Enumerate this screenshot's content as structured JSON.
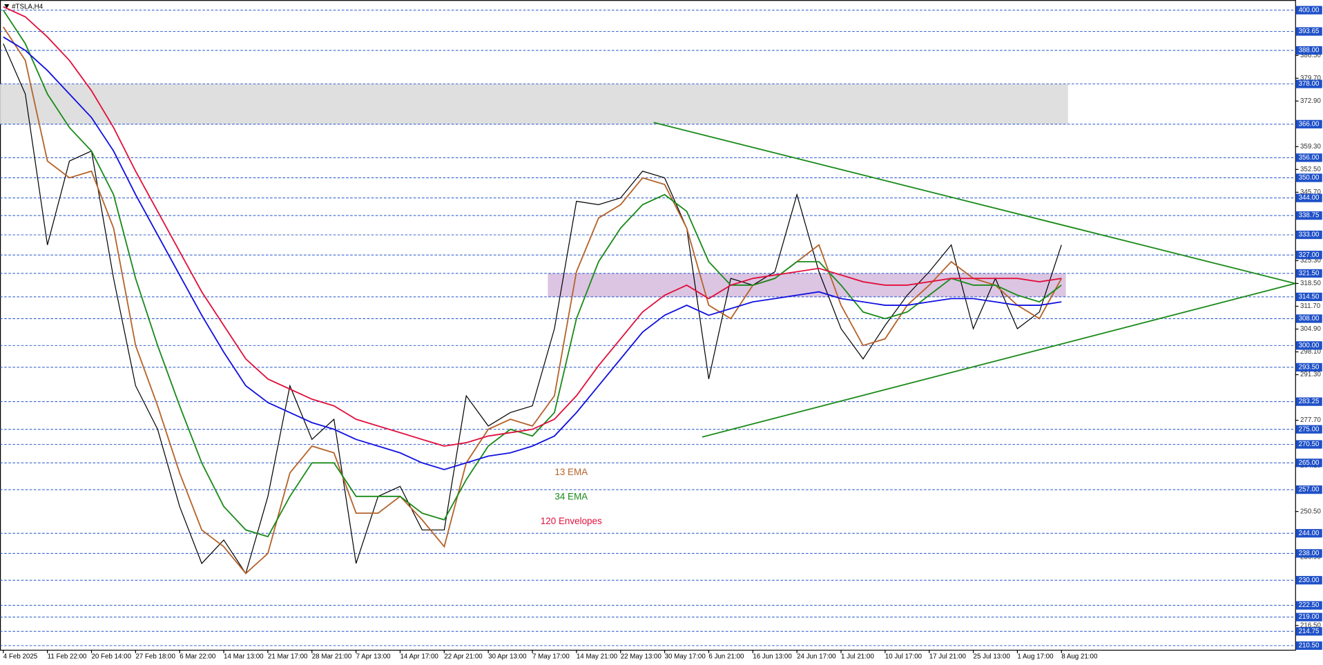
{
  "chart_data": {
    "type": "line",
    "title": "#TSLA,H4",
    "categories": [
      "4 Feb 2025",
      null,
      "11 Feb 22:00",
      null,
      "20 Feb 14:00",
      null,
      "27 Feb 18:00",
      null,
      "6 Mar 22:00",
      null,
      "14 Mar 13:00",
      null,
      "21 Mar 17:00",
      null,
      "28 Mar 21:00",
      null,
      "7 Apr 13:00",
      null,
      "14 Apr 17:00",
      null,
      "22 Apr 21:00",
      null,
      "30 Apr 13:00",
      null,
      "7 May 17:00",
      null,
      "14 May 21:00",
      null,
      "22 May 13:00",
      null,
      "30 May 17:00",
      null,
      "6 Jun 21:00",
      null,
      "16 Jun 13:00",
      null,
      "24 Jun 17:00",
      null,
      "1 Jul 21:00",
      null,
      "10 Jul 17:00",
      null,
      "17 Jul 21:00",
      null,
      "25 Jul 13:00",
      null,
      "1 Aug 17:00",
      null,
      "8 Aug 21:00"
    ],
    "series": [
      {
        "color": "#000000",
        "values": [
          390,
          375,
          330,
          355,
          358,
          320,
          288,
          275,
          252,
          235,
          242,
          232,
          255,
          288,
          272,
          278,
          235,
          255,
          258,
          245,
          245,
          285,
          276,
          280,
          282,
          305,
          343,
          342,
          344,
          352,
          350,
          335,
          290,
          320,
          318,
          322,
          345,
          322,
          305,
          296,
          306,
          315,
          322,
          330,
          305,
          320,
          305,
          310,
          330
        ]
      },
      {
        "name": "13 EMA",
        "color": "#b5632a",
        "values": [
          395,
          385,
          355,
          350,
          352,
          335,
          300,
          282,
          262,
          245,
          240,
          232,
          238,
          262,
          270,
          268,
          250,
          250,
          255,
          248,
          240,
          265,
          275,
          278,
          276,
          285,
          322,
          338,
          342,
          350,
          348,
          335,
          312,
          308,
          318,
          320,
          325,
          330,
          312,
          300,
          302,
          312,
          318,
          325,
          320,
          318,
          312,
          308,
          320
        ]
      },
      {
        "name": "34 EMA",
        "color": "#1a8a1a",
        "values": [
          400,
          390,
          375,
          365,
          358,
          345,
          320,
          300,
          282,
          265,
          252,
          245,
          243,
          255,
          265,
          265,
          255,
          255,
          255,
          250,
          248,
          260,
          270,
          275,
          273,
          280,
          308,
          325,
          335,
          342,
          345,
          340,
          325,
          318,
          318,
          320,
          325,
          325,
          318,
          310,
          308,
          310,
          315,
          320,
          318,
          318,
          315,
          313,
          318
        ]
      },
      {
        "name": "120 Envelopes",
        "color": "#e0103c",
        "values": [
          401,
          398,
          392,
          385,
          376,
          365,
          352,
          340,
          328,
          316,
          306,
          296,
          290,
          287,
          284,
          282,
          278,
          276,
          274,
          272,
          270,
          271,
          273,
          274,
          275,
          278,
          285,
          294,
          302,
          310,
          315,
          318,
          314,
          318,
          320,
          321,
          322,
          323,
          321,
          319,
          318,
          318,
          319,
          320,
          320,
          320,
          320,
          319,
          320
        ]
      },
      {
        "color": "#1010e0",
        "values": [
          392,
          388,
          382,
          375,
          368,
          358,
          345,
          333,
          321,
          309,
          298,
          288,
          283,
          280,
          277,
          275,
          272,
          270,
          268,
          265,
          263,
          265,
          267,
          268,
          270,
          273,
          280,
          288,
          296,
          304,
          309,
          312,
          309,
          311,
          313,
          314,
          315,
          316,
          314,
          313,
          312,
          312,
          313,
          314,
          314,
          313,
          312,
          312,
          313
        ]
      }
    ],
    "xlim": [
      -0.15,
      58.6
    ],
    "ylim": [
      209.26,
      403.02
    ],
    "yticks": [
      {
        "value": 386.5,
        "label": "386.50"
      },
      {
        "value": 379.7,
        "label": "379.70"
      },
      {
        "value": 372.9,
        "label": "372.90"
      },
      {
        "value": 359.3,
        "label": "359.30"
      },
      {
        "value": 352.5,
        "label": "352.50"
      },
      {
        "value": 345.7,
        "label": "345.70"
      },
      {
        "value": 325.3,
        "label": "325.30"
      },
      {
        "value": 318.5,
        "label": "318.50"
      },
      {
        "value": 311.7,
        "label": "311.70"
      },
      {
        "value": 304.9,
        "label": "304.90"
      },
      {
        "value": 298.1,
        "label": "298.10"
      },
      {
        "value": 291.3,
        "label": "291.30"
      },
      {
        "value": 277.7,
        "label": "277.70"
      },
      {
        "value": 264.1,
        "label": "264.10"
      },
      {
        "value": 250.5,
        "label": "250.50"
      },
      {
        "value": 236.9,
        "label": "236.90"
      },
      {
        "value": 216.5,
        "label": "216.50"
      }
    ],
    "levels": [
      {
        "value": 400,
        "label": "400.00"
      },
      {
        "value": 393.65,
        "label": "393.65"
      },
      {
        "value": 388,
        "label": "388.00"
      },
      {
        "value": 378,
        "label": "378.00"
      },
      {
        "value": 366,
        "label": "366.00"
      },
      {
        "value": 356,
        "label": "356.00"
      },
      {
        "value": 350,
        "label": "350.00"
      },
      {
        "value": 344,
        "label": "344.00"
      },
      {
        "value": 338.75,
        "label": "338.75"
      },
      {
        "value": 333,
        "label": "333.00"
      },
      {
        "value": 327,
        "label": "327.00"
      },
      {
        "value": 321.5,
        "label": "321.50"
      },
      {
        "value": 314.5,
        "label": "314.50"
      },
      {
        "value": 308,
        "label": "308.00"
      },
      {
        "value": 300,
        "label": "300.00"
      },
      {
        "value": 293.5,
        "label": "293.50"
      },
      {
        "value": 283.25,
        "label": "283.25"
      },
      {
        "value": 275,
        "label": "275.00"
      },
      {
        "value": 270.5,
        "label": "270.50"
      },
      {
        "value": 265,
        "label": "265.00"
      },
      {
        "value": 257,
        "label": "257.00"
      },
      {
        "value": 244,
        "label": "244.00"
      },
      {
        "value": 238,
        "label": "238.00"
      },
      {
        "value": 230,
        "label": "230.00"
      },
      {
        "value": 222.5,
        "label": "222.50"
      },
      {
        "value": 219,
        "label": "219.00"
      },
      {
        "value": 214.75,
        "label": "214.75"
      },
      {
        "value": 210.5,
        "label": "210.50"
      }
    ],
    "level_color": "#1e50c8",
    "zones": [
      {
        "xlim": [
          -0.15,
          48.3
        ],
        "ylim": [
          366,
          378
        ],
        "color": "#dcdcdc"
      },
      {
        "xlim": [
          24.7,
          48.2
        ],
        "ylim": [
          314.5,
          321.5
        ],
        "color": "#d8bfdf"
      }
    ],
    "trendlines": [
      {
        "x": [
          29.5,
          58.6
        ],
        "y": [
          366.5,
          318.5
        ],
        "color": "#1a8a1a"
      },
      {
        "x": [
          31.7,
          58.6
        ],
        "y": [
          272.7,
          318.5
        ],
        "color": "#1a8a1a"
      }
    ]
  }
}
